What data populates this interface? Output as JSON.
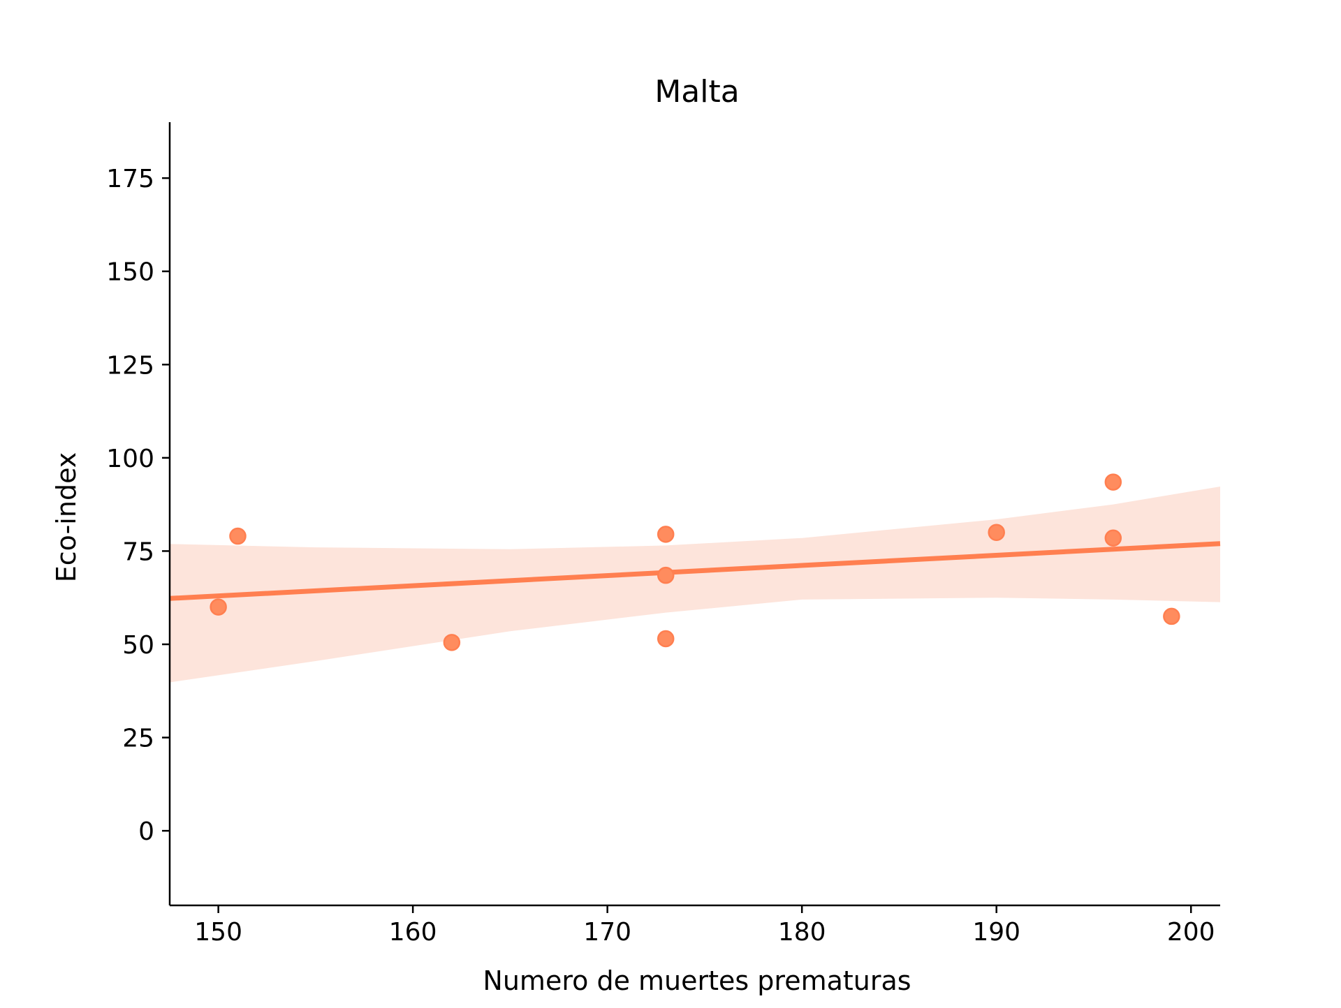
{
  "chart_data": {
    "type": "scatter",
    "title": "Malta",
    "xlabel": "Numero de muertes prematuras",
    "ylabel": "Eco-index",
    "xlim": [
      147.5,
      201.5
    ],
    "ylim": [
      -20,
      190
    ],
    "xticks": [
      150,
      160,
      170,
      180,
      190,
      200
    ],
    "yticks": [
      0,
      25,
      50,
      75,
      100,
      125,
      150,
      175
    ],
    "grid": false,
    "legend": "none",
    "colors": {
      "points": "#FF8C5E",
      "line": "#FF7F50",
      "band": "#FDE4DB"
    },
    "series": [
      {
        "points": [
          {
            "x": 150,
            "y": 60
          },
          {
            "x": 151,
            "y": 79
          },
          {
            "x": 162,
            "y": 50.5
          },
          {
            "x": 173,
            "y": 79.5
          },
          {
            "x": 173,
            "y": 68.5
          },
          {
            "x": 173,
            "y": 51.5
          },
          {
            "x": 190,
            "y": 80
          },
          {
            "x": 196,
            "y": 93.5
          },
          {
            "x": 196,
            "y": 78.5
          },
          {
            "x": 199,
            "y": 57.5
          }
        ]
      }
    ],
    "regression": {
      "x": [
        147.5,
        201.5
      ],
      "y": [
        62.3,
        77.0
      ]
    },
    "confidence_band": {
      "x": [
        147.5,
        155,
        165,
        173,
        180,
        190,
        196,
        201.5
      ],
      "lower": [
        39.8,
        45.5,
        53.5,
        58.5,
        62.0,
        62.5,
        62.0,
        61.3
      ],
      "upper": [
        76.9,
        76.0,
        75.5,
        76.5,
        78.5,
        83.5,
        87.5,
        92.3
      ]
    }
  }
}
